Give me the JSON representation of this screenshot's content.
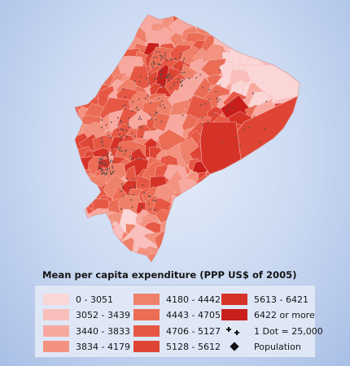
{
  "legend": {
    "title": "Mean per capita expenditure (PPP US$ of 2005)",
    "classes": [
      {
        "label": "0 - 3051",
        "color": "#fbd6d6"
      },
      {
        "label": "3052 - 3439",
        "color": "#f9bfbc"
      },
      {
        "label": "3440 - 3833",
        "color": "#f7a89f"
      },
      {
        "label": "3834 - 4179",
        "color": "#f3927f"
      },
      {
        "label": "4180 - 4442",
        "color": "#ef8069"
      },
      {
        "label": "4443 - 4705",
        "color": "#eb6d55"
      },
      {
        "label": "4706 - 5127",
        "color": "#e65844"
      },
      {
        "label": "5128 - 5612",
        "color": "#df4535"
      },
      {
        "label": "5613 - 6421",
        "color": "#d63328"
      },
      {
        "label": "6422 or more",
        "color": "#c81f1c"
      }
    ],
    "dot_note": "1 Dot = 25,000",
    "dot_symbol": "plus-dots-icon",
    "population_label": "Population",
    "population_symbol": "diamond-icon"
  },
  "map": {
    "region_colors": [
      "#fbd6d6",
      "#f9bfbc",
      "#f7a89f",
      "#f3927f",
      "#ef8069",
      "#eb6d55",
      "#e65844",
      "#df4535",
      "#d63328",
      "#c81f1c"
    ],
    "border_color": "#f6b8b3",
    "dot_color": "#5a4a4a"
  }
}
